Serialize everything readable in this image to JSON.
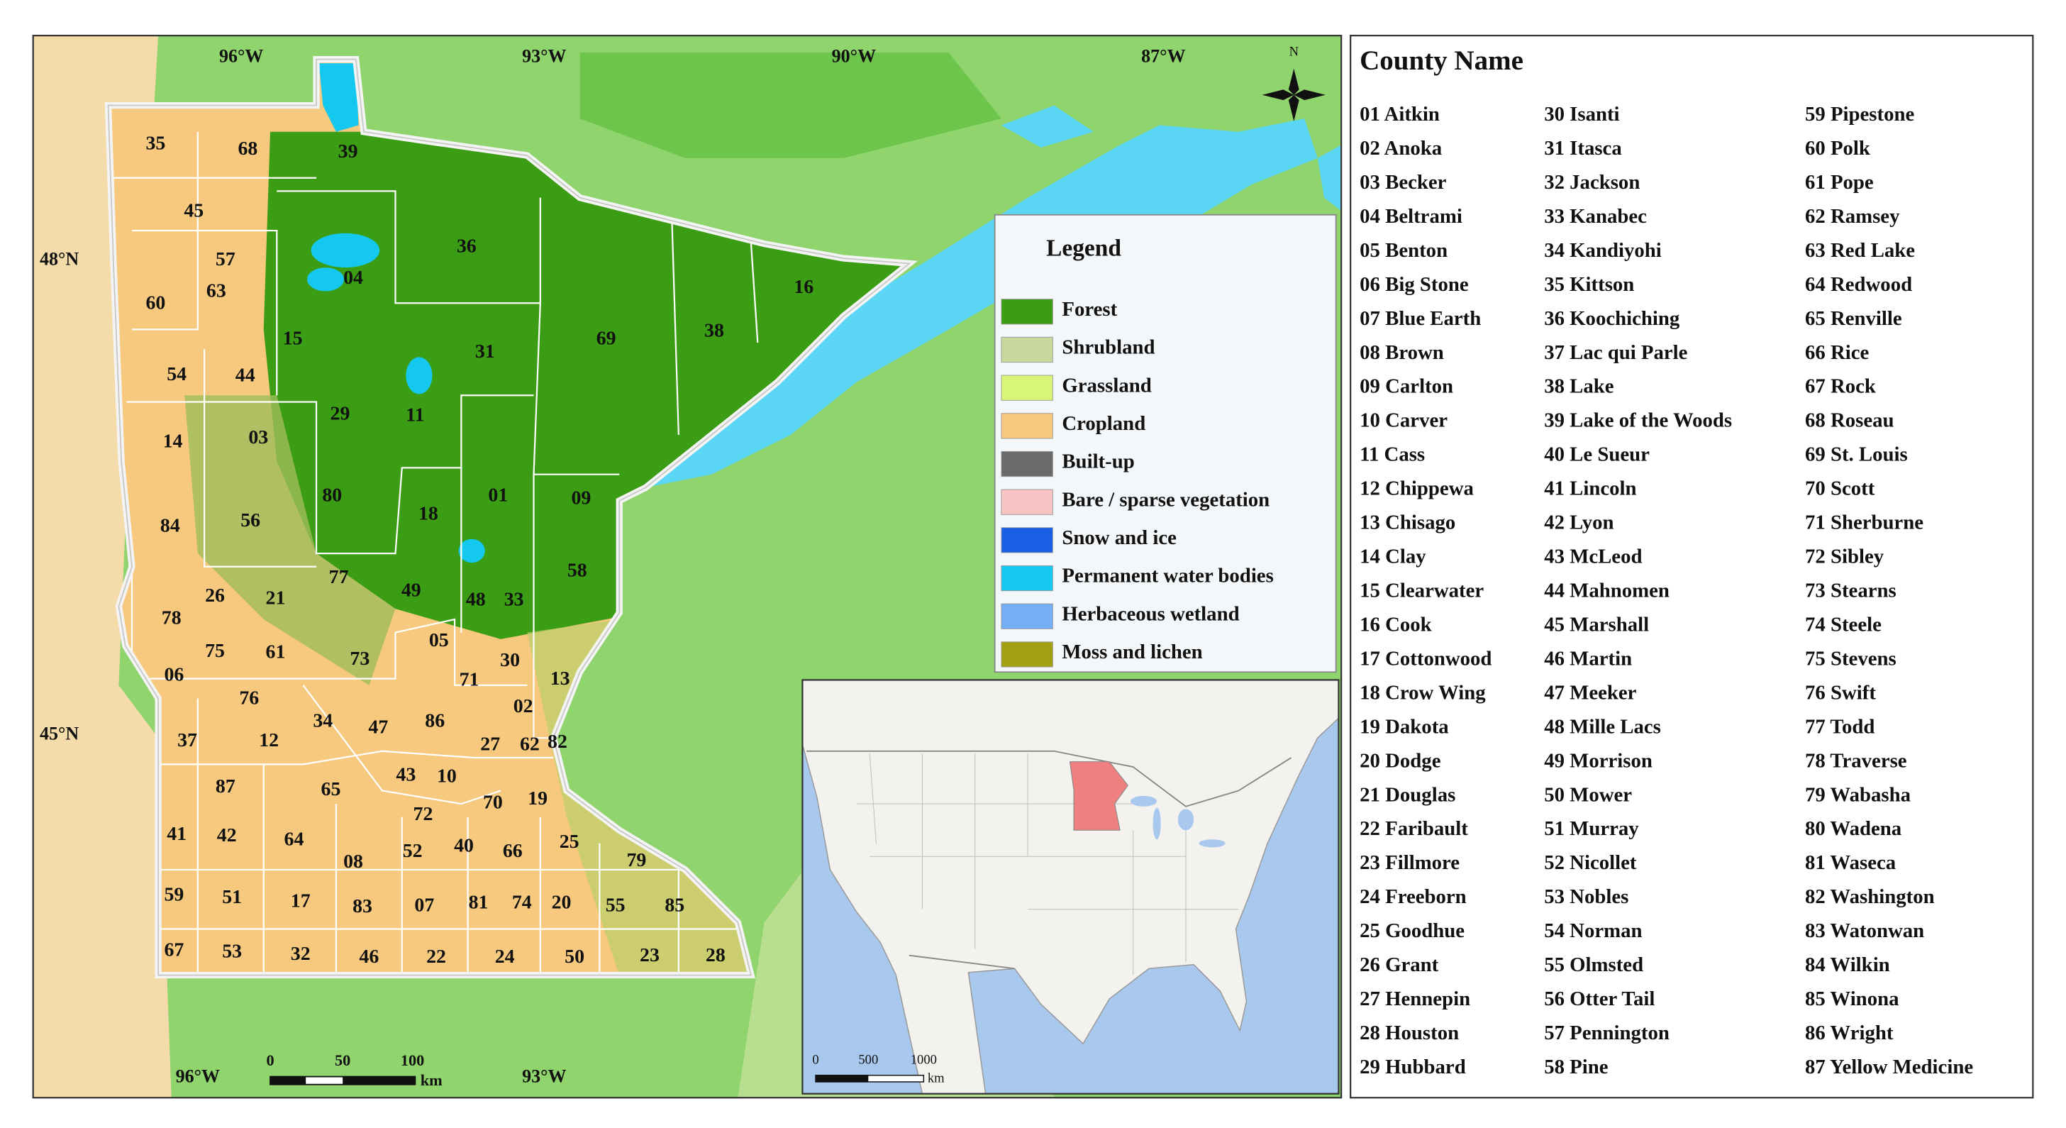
{
  "map": {
    "lon_labels_top": [
      "96°W",
      "93°W",
      "90°W",
      "87°W"
    ],
    "lon_labels_bottom": [
      "96°W",
      "93°W"
    ],
    "lat_labels": [
      "48°N",
      "45°N"
    ],
    "north": "N",
    "scale_bar": {
      "labels": [
        "0",
        "50",
        "100"
      ],
      "unit": "km"
    },
    "county_labels": [
      "01",
      "02",
      "03",
      "04",
      "05",
      "06",
      "07",
      "08",
      "09",
      "10",
      "11",
      "12",
      "13",
      "14",
      "15",
      "16",
      "17",
      "18",
      "19",
      "20",
      "21",
      "22",
      "23",
      "24",
      "25",
      "26",
      "27",
      "28",
      "29",
      "30",
      "31",
      "32",
      "33",
      "34",
      "35",
      "36",
      "37",
      "38",
      "39",
      "40",
      "41",
      "42",
      "43",
      "44",
      "45",
      "46",
      "47",
      "48",
      "49",
      "50",
      "51",
      "52",
      "53",
      "54",
      "55",
      "56",
      "57",
      "58",
      "59",
      "60",
      "61",
      "62",
      "63",
      "64",
      "65",
      "66",
      "67",
      "68",
      "69",
      "70",
      "71",
      "72",
      "73",
      "74",
      "75",
      "76",
      "77",
      "78",
      "79",
      "80",
      "81",
      "82",
      "83",
      "84",
      "85",
      "86",
      "87"
    ]
  },
  "legend": {
    "title": "Legend",
    "items": [
      {
        "label": "Forest",
        "color": "#3a9d13"
      },
      {
        "label": "Shrubland",
        "color": "#c8d89c"
      },
      {
        "label": "Grassland",
        "color": "#d8f57a"
      },
      {
        "label": "Cropland",
        "color": "#f6c97e"
      },
      {
        "label": "Built-up",
        "color": "#6a6a6a"
      },
      {
        "label": "Bare / sparse vegetation",
        "color": "#f9c4c4"
      },
      {
        "label": "Snow and ice",
        "color": "#1a5ee6"
      },
      {
        "label": "Permanent water bodies",
        "color": "#14c8f0"
      },
      {
        "label": "Herbaceous wetland",
        "color": "#74aef5"
      },
      {
        "label": "Moss and lichen",
        "color": "#a3a012"
      }
    ]
  },
  "inset": {
    "scale_bar": {
      "labels": [
        "0",
        "500",
        "1000"
      ],
      "unit": "km"
    }
  },
  "county_list": {
    "title": "County Name",
    "entries": [
      "01 Aitkin",
      "02 Anoka",
      "03 Becker",
      "04 Beltrami",
      "05 Benton",
      "06 Big Stone",
      "07 Blue Earth",
      "08 Brown",
      "09 Carlton",
      "10 Carver",
      "11 Cass",
      "12 Chippewa",
      "13 Chisago",
      "14 Clay",
      "15 Clearwater",
      "16 Cook",
      "17 Cottonwood",
      "18 Crow Wing",
      "19 Dakota",
      "20 Dodge",
      "21 Douglas",
      "22 Faribault",
      "23 Fillmore",
      "24 Freeborn",
      "25 Goodhue",
      "26 Grant",
      "27 Hennepin",
      "28 Houston",
      "29 Hubbard",
      "30 Isanti",
      "31 Itasca",
      "32 Jackson",
      "33 Kanabec",
      "34 Kandiyohi",
      "35 Kittson",
      "36 Koochiching",
      "37 Lac qui Parle",
      "38 Lake",
      "39 Lake of the Woods",
      "40 Le Sueur",
      "41 Lincoln",
      "42 Lyon",
      "43 McLeod",
      "44 Mahnomen",
      "45 Marshall",
      "46 Martin",
      "47 Meeker",
      "48 Mille Lacs",
      "49 Morrison",
      "50 Mower",
      "51 Murray",
      "52 Nicollet",
      "53 Nobles",
      "54 Norman",
      "55 Olmsted",
      "56 Otter Tail",
      "57 Pennington",
      "58 Pine",
      "59 Pipestone",
      "60 Polk",
      "61 Pope",
      "62 Ramsey",
      "63 Red Lake",
      "64 Redwood",
      "65 Renville",
      "66 Rice",
      "67 Rock",
      "68 Roseau",
      "69 St. Louis",
      "70 Scott",
      "71 Sherburne",
      "72 Sibley",
      "73 Stearns",
      "74 Steele",
      "75 Stevens",
      "76 Swift",
      "77 Todd",
      "78 Traverse",
      "79 Wabasha",
      "80 Wadena",
      "81 Waseca",
      "82 Washington",
      "83 Watonwan",
      "84 Wilkin",
      "85 Winona",
      "86 Wright",
      "87 Yellow Medicine"
    ]
  }
}
